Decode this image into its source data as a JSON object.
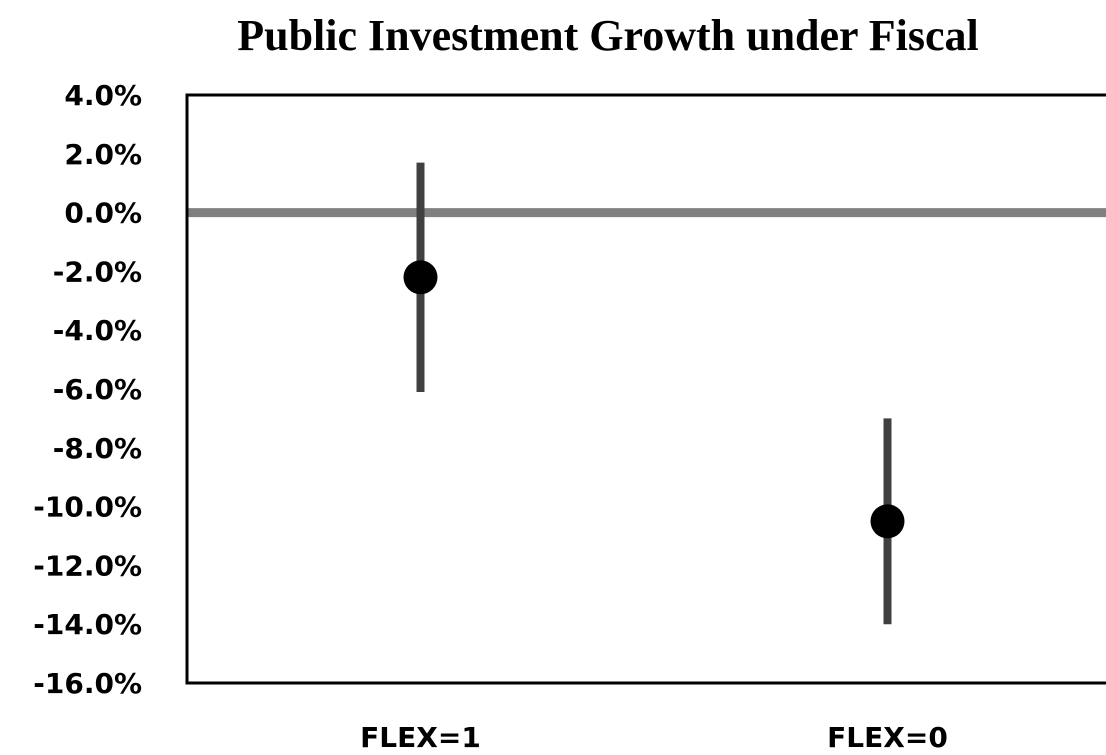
{
  "chart_data": {
    "type": "errorbar",
    "title": "Public Investment Growth under Fiscal",
    "categories": [
      "FLEX=1",
      "FLEX=0"
    ],
    "values": [
      -2.2,
      -10.5
    ],
    "errors": [
      3.9,
      3.5
    ],
    "color": "#000000",
    "error_color": "#404040",
    "zero_line_color": "#808080",
    "ylim": [
      -16,
      4
    ],
    "yticks": [
      {
        "value": 4,
        "label": "4.0%"
      },
      {
        "value": 2,
        "label": "2.0%"
      },
      {
        "value": 0,
        "label": "0.0%"
      },
      {
        "value": -2,
        "label": "-2.0%"
      },
      {
        "value": -4,
        "label": "-4.0%"
      },
      {
        "value": -6,
        "label": "-6.0%"
      },
      {
        "value": -8,
        "label": "-8.0%"
      },
      {
        "value": -10,
        "label": "-10.0%"
      },
      {
        "value": -12,
        "label": "-12.0%"
      },
      {
        "value": -14,
        "label": "-14.0%"
      },
      {
        "value": -16,
        "label": "-16.0%"
      }
    ]
  }
}
